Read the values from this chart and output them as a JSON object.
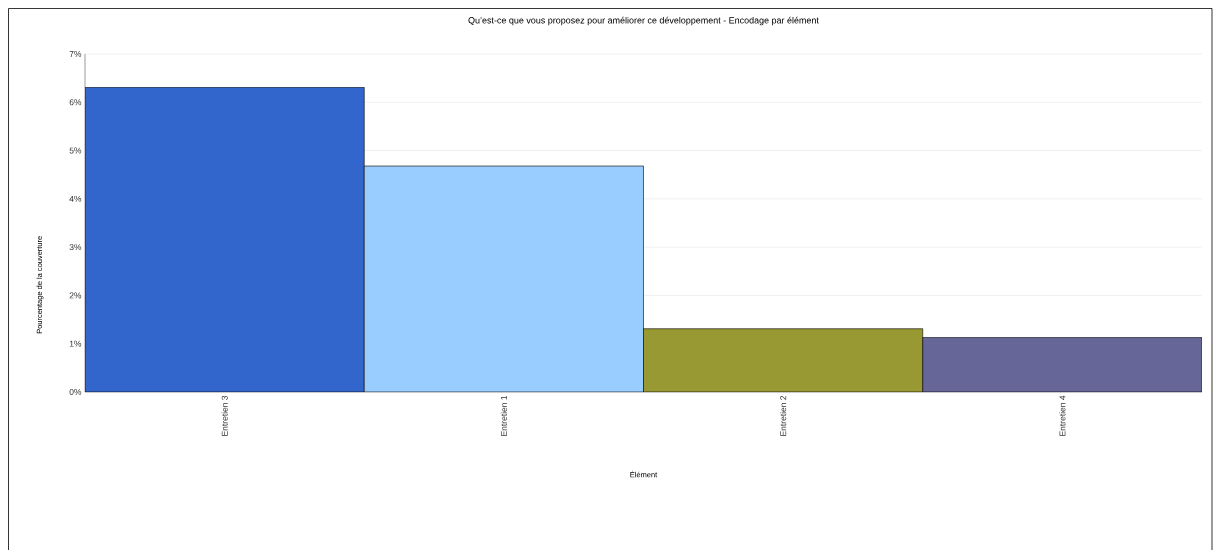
{
  "chart_data": {
    "type": "bar",
    "title": "Qu’est-ce que vous proposez pour améliorer ce développement - Encodage par élément",
    "xlabel": "Élément",
    "ylabel": "Pourcentage de la couverture",
    "categories": [
      "Entretien 3",
      "Entretien 1",
      "Entretien 2",
      "Entretien 4"
    ],
    "values": [
      6.31,
      4.68,
      1.31,
      1.13
    ],
    "colors": [
      "#3366cc",
      "#99ccff",
      "#999933",
      "#666699"
    ],
    "ylim": [
      0,
      7
    ],
    "yticks": [
      {
        "value": 0,
        "label": "0%"
      },
      {
        "value": 1,
        "label": "1%"
      },
      {
        "value": 2,
        "label": "2%"
      },
      {
        "value": 3,
        "label": "3%"
      },
      {
        "value": 4,
        "label": "4%"
      },
      {
        "value": 5,
        "label": "5%"
      },
      {
        "value": 6,
        "label": "6%"
      },
      {
        "value": 7,
        "label": "7%"
      }
    ],
    "grid": "y"
  }
}
